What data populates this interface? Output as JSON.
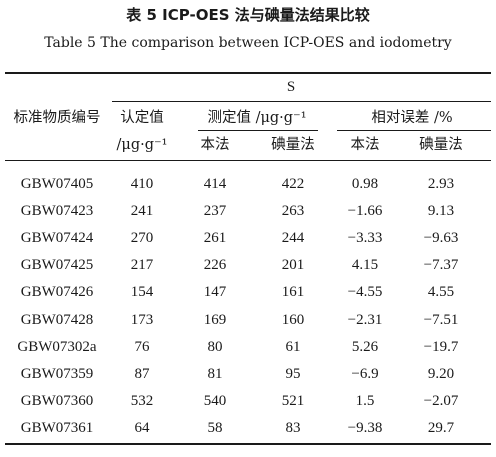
{
  "title_cn": "表 5   ICP-OES 法与碘量法结果比较",
  "title_en": "Table 5    The comparison between ICP-OES and iodometry",
  "table": {
    "element": "S",
    "headers": {
      "material_code": "标准物质编号",
      "certified_value": "认定值",
      "certified_unit": "/μg·g⁻¹",
      "measured_value": "测定值 /μg·g⁻¹",
      "relative_error": "相对误差 /%",
      "method_this": "本法",
      "method_iodometry": "碘量法"
    },
    "rows": [
      {
        "code": "GBW07405",
        "certified": "410",
        "measured_this": "414",
        "measured_iod": "422",
        "error_this": "0.98",
        "error_iod": "2.93"
      },
      {
        "code": "GBW07423",
        "certified": "241",
        "measured_this": "237",
        "measured_iod": "263",
        "error_this": "−1.66",
        "error_iod": "9.13"
      },
      {
        "code": "GBW07424",
        "certified": "270",
        "measured_this": "261",
        "measured_iod": "244",
        "error_this": "−3.33",
        "error_iod": "−9.63"
      },
      {
        "code": "GBW07425",
        "certified": "217",
        "measured_this": "226",
        "measured_iod": "201",
        "error_this": "4.15",
        "error_iod": "−7.37"
      },
      {
        "code": "GBW07426",
        "certified": "154",
        "measured_this": "147",
        "measured_iod": "161",
        "error_this": "−4.55",
        "error_iod": "4.55"
      },
      {
        "code": "GBW07428",
        "certified": "173",
        "measured_this": "169",
        "measured_iod": "160",
        "error_this": "−2.31",
        "error_iod": "−7.51"
      },
      {
        "code": "GBW07302a",
        "certified": "76",
        "measured_this": "80",
        "measured_iod": "61",
        "error_this": "5.26",
        "error_iod": "−19.7"
      },
      {
        "code": "GBW07359",
        "certified": "87",
        "measured_this": "81",
        "measured_iod": "95",
        "error_this": "−6.9",
        "error_iod": "9.20"
      },
      {
        "code": "GBW07360",
        "certified": "532",
        "measured_this": "540",
        "measured_iod": "521",
        "error_this": "1.5",
        "error_iod": "−2.07"
      },
      {
        "code": "GBW07361",
        "certified": "64",
        "measured_this": "58",
        "measured_iod": "83",
        "error_this": "−9.38",
        "error_iod": "29.7"
      }
    ]
  }
}
